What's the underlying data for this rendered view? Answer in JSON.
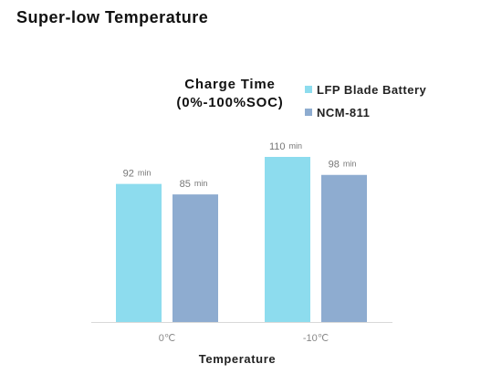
{
  "page": {
    "heading": "Super-low Temperature"
  },
  "chart_data": {
    "type": "bar",
    "title": "Charge Time",
    "subtitle": "(0%-100%SOC)",
    "xlabel": "Temperature",
    "ylabel": "",
    "categories": [
      "0℃",
      "-10℃"
    ],
    "series": [
      {
        "name": "LFP Blade Battery",
        "values": [
          92,
          110
        ],
        "color": "#8ddcee"
      },
      {
        "name": "NCM-811",
        "values": [
          85,
          98
        ],
        "color": "#8eacd0"
      }
    ],
    "unit": "min",
    "ylim": [
      0,
      110
    ],
    "grid": false,
    "legend": "top-right"
  }
}
